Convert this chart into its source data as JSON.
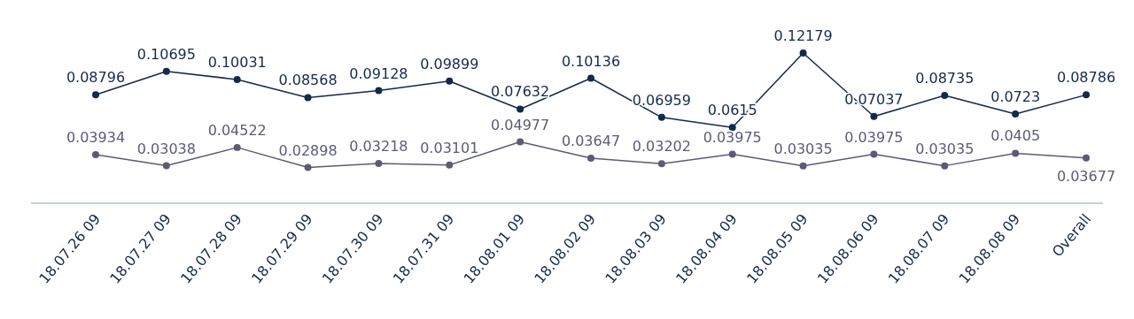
{
  "chart_data": {
    "type": "line",
    "categories": [
      "18.07.26 09",
      "18.07.27 09",
      "18.07.28 09",
      "18.07.29 09",
      "18.07.30 09",
      "18.07.31 09",
      "18.08.01 09",
      "18.08.02 09",
      "18.08.03 09",
      "18.08.04 09",
      "18.08.05 09",
      "18.08.06 09",
      "18.08.07 09",
      "18.08.08 09",
      "Overall"
    ],
    "series": [
      {
        "color": "#14294b",
        "values": [
          0.08796,
          0.10695,
          0.10031,
          0.08568,
          0.09128,
          0.09899,
          0.07632,
          0.10136,
          0.06959,
          0.0615,
          0.12179,
          0.07037,
          0.08735,
          0.0723,
          0.08786
        ]
      },
      {
        "color": "#5b5b76",
        "values": [
          0.03934,
          0.03038,
          0.04522,
          0.02898,
          0.03218,
          0.03101,
          0.04977,
          0.03647,
          0.03202,
          0.03975,
          0.03035,
          0.03975,
          0.03035,
          0.0405,
          0.03677
        ]
      }
    ],
    "tick_labels": "x",
    "data_labels": true,
    "marker": "circle",
    "grid": false,
    "legend": false
  }
}
